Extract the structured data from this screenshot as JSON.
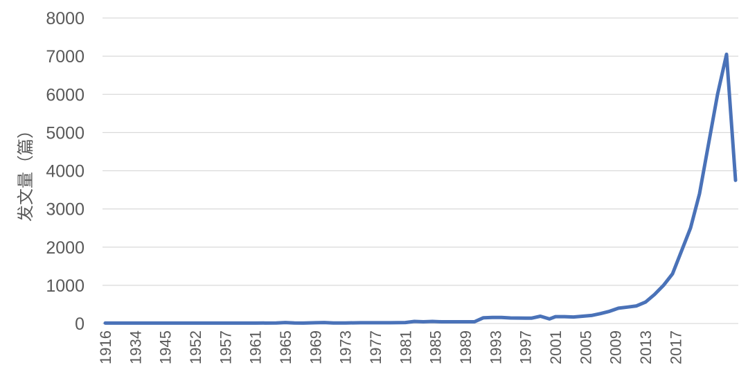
{
  "chart_data": {
    "type": "line",
    "ylabel": "发文量（篇）",
    "xlabel": "",
    "ylim": [
      0,
      8000
    ],
    "yticks": [
      0,
      1000,
      2000,
      3000,
      4000,
      5000,
      6000,
      7000,
      8000
    ],
    "grid": true,
    "legend": "none",
    "x_tick_labels": [
      "1916",
      "1934",
      "1945",
      "1952",
      "1957",
      "1961",
      "1965",
      "1969",
      "1973",
      "1977",
      "1981",
      "1985",
      "1989",
      "1993",
      "1997",
      "2001",
      "2005",
      "2009",
      "2013",
      "2017"
    ],
    "x_tick_categories": [
      0,
      1,
      2,
      3,
      4,
      5,
      6,
      7,
      8,
      9,
      10,
      11,
      12,
      13,
      14,
      15,
      16,
      17,
      18,
      19
    ],
    "series": [
      {
        "color": "#4a72b8",
        "points": [
          [
            0.0,
            10
          ],
          [
            0.5,
            10
          ],
          [
            1.0,
            10
          ],
          [
            2.0,
            10
          ],
          [
            3.0,
            10
          ],
          [
            4.0,
            10
          ],
          [
            5.0,
            10
          ],
          [
            5.7,
            15
          ],
          [
            6.0,
            25
          ],
          [
            6.3,
            15
          ],
          [
            6.6,
            10
          ],
          [
            7.0,
            20
          ],
          [
            7.3,
            25
          ],
          [
            7.6,
            15
          ],
          [
            8.0,
            15
          ],
          [
            8.5,
            20
          ],
          [
            9.0,
            20
          ],
          [
            9.5,
            20
          ],
          [
            10.0,
            25
          ],
          [
            10.3,
            55
          ],
          [
            10.6,
            45
          ],
          [
            10.9,
            55
          ],
          [
            11.2,
            45
          ],
          [
            11.5,
            45
          ],
          [
            12.0,
            45
          ],
          [
            12.3,
            45
          ],
          [
            12.6,
            150
          ],
          [
            12.9,
            160
          ],
          [
            13.2,
            160
          ],
          [
            13.5,
            145
          ],
          [
            14.0,
            140
          ],
          [
            14.2,
            140
          ],
          [
            14.5,
            190
          ],
          [
            14.8,
            120
          ],
          [
            15.0,
            180
          ],
          [
            15.3,
            180
          ],
          [
            15.6,
            170
          ],
          [
            15.9,
            190
          ],
          [
            16.2,
            210
          ],
          [
            16.5,
            260
          ],
          [
            16.8,
            320
          ],
          [
            17.1,
            400
          ],
          [
            17.4,
            430
          ],
          [
            17.7,
            460
          ],
          [
            18.0,
            560
          ],
          [
            18.3,
            760
          ],
          [
            18.6,
            1000
          ],
          [
            18.9,
            1300
          ],
          [
            19.2,
            1900
          ],
          [
            19.5,
            2500
          ],
          [
            19.8,
            3400
          ],
          [
            20.1,
            4700
          ],
          [
            20.4,
            6000
          ],
          [
            20.7,
            7050
          ],
          [
            21.0,
            3750
          ]
        ]
      }
    ]
  }
}
